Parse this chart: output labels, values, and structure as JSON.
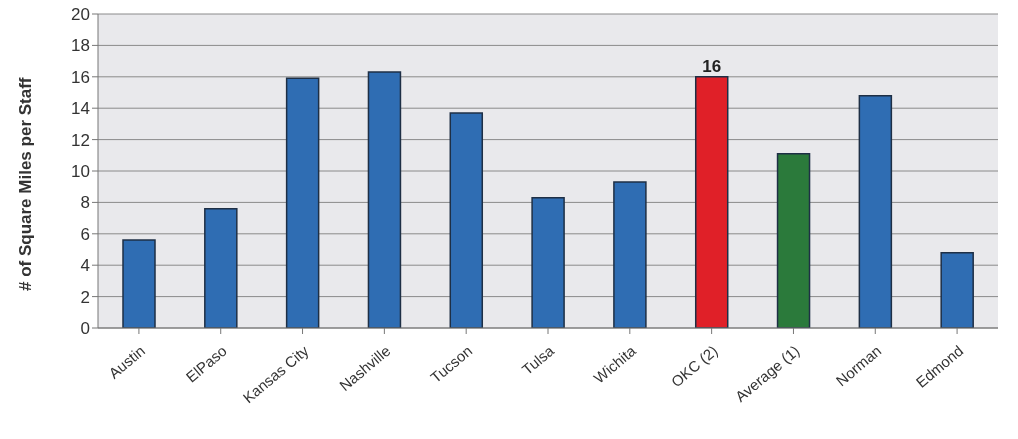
{
  "chart_data": {
    "type": "bar",
    "ylabel": "# of Square Miles per Staff",
    "categories": [
      "Austin",
      "ElPaso",
      "Kansas City",
      "Nashville",
      "Tucson",
      "Tulsa",
      "Wichita",
      "OKC (2)",
      "Average (1)",
      "Norman",
      "Edmond"
    ],
    "values": [
      5.6,
      7.6,
      15.9,
      16.3,
      13.7,
      8.3,
      9.3,
      16,
      11.1,
      14.8,
      4.8
    ],
    "colors": [
      "#2f6db3",
      "#2f6db3",
      "#2f6db3",
      "#2f6db3",
      "#2f6db3",
      "#2f6db3",
      "#2f6db3",
      "#e02028",
      "#2b7a3b",
      "#2f6db3",
      "#2f6db3"
    ],
    "value_labels": [
      null,
      null,
      null,
      null,
      null,
      null,
      null,
      "16",
      null,
      null,
      null
    ],
    "ylim": [
      0,
      20
    ],
    "yticks": [
      0,
      2,
      4,
      6,
      8,
      10,
      12,
      14,
      16,
      18,
      20
    ],
    "grid": "y"
  }
}
